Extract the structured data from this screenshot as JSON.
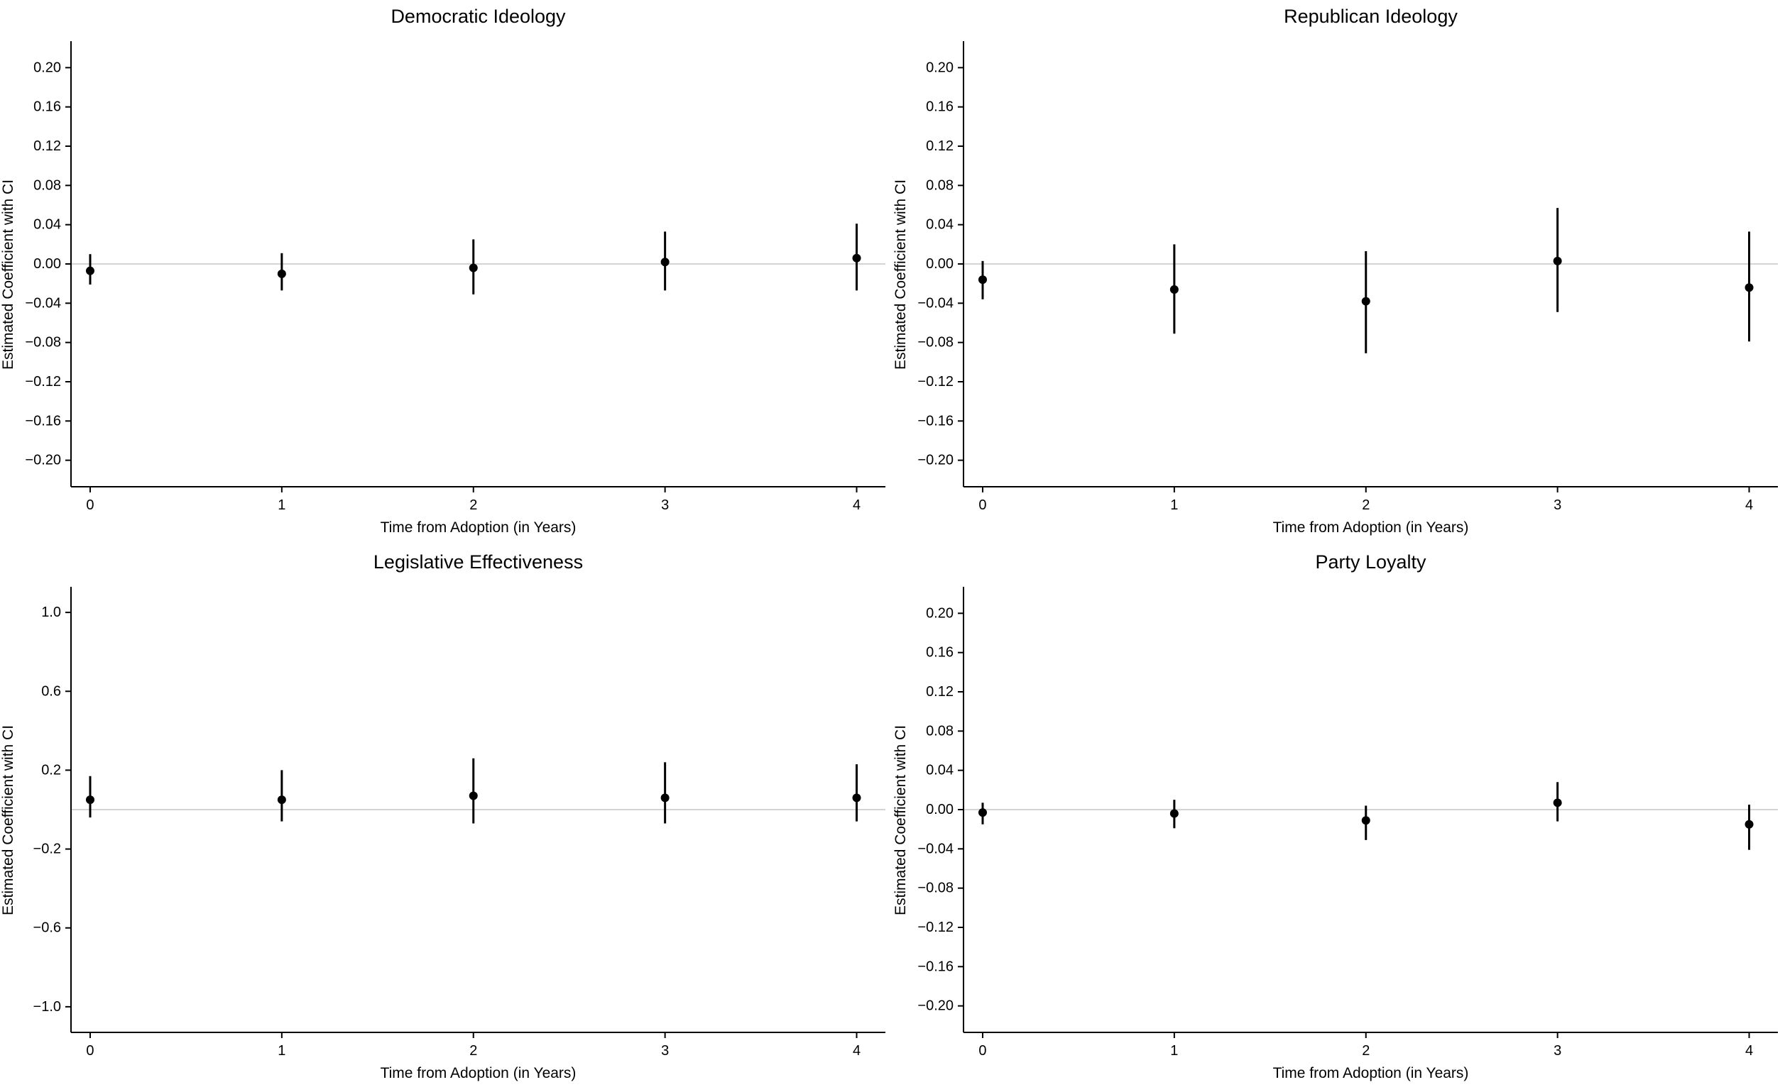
{
  "style": {
    "background": "#ffffff",
    "axis_color": "#000000",
    "point_color": "#000000",
    "ci_color": "#000000",
    "zero_line_color": "#d4d4d4"
  },
  "chart_data": [
    {
      "type": "scatter",
      "title": "Democratic Ideology",
      "xlabel": "Time from Adoption (in Years)",
      "ylabel": "Estimated Coefficient with CI",
      "x": [
        0,
        1,
        2,
        3,
        4
      ],
      "xticks": [
        0,
        1,
        2,
        3,
        4
      ],
      "xtick_labels": [
        "0",
        "1",
        "2",
        "3",
        "4"
      ],
      "yticks": [
        0.2,
        0.16,
        0.12,
        0.08,
        0.04,
        0.0,
        -0.04,
        -0.08,
        -0.12,
        -0.16,
        -0.2
      ],
      "ytick_labels": [
        "0.20",
        "0.16",
        "0.12",
        "0.08",
        "0.04",
        "0.00",
        "−0.04",
        "−0.08",
        "−0.12",
        "−0.16",
        "−0.20"
      ],
      "ylim": [
        -0.227,
        0.227
      ],
      "zero_line": 0,
      "grid": false,
      "legend": false,
      "series": [
        {
          "name": "estimate",
          "values": [
            -0.007,
            -0.01,
            -0.004,
            0.002,
            0.006
          ]
        }
      ],
      "ci_low": [
        -0.021,
        -0.027,
        -0.031,
        -0.027,
        -0.027
      ],
      "ci_high": [
        0.01,
        0.011,
        0.025,
        0.033,
        0.041
      ]
    },
    {
      "type": "scatter",
      "title": "Republican Ideology",
      "xlabel": "Time from Adoption (in Years)",
      "ylabel": "Estimated Coefficient with CI",
      "x": [
        0,
        1,
        2,
        3,
        4
      ],
      "xticks": [
        0,
        1,
        2,
        3,
        4
      ],
      "xtick_labels": [
        "0",
        "1",
        "2",
        "3",
        "4"
      ],
      "yticks": [
        0.2,
        0.16,
        0.12,
        0.08,
        0.04,
        0.0,
        -0.04,
        -0.08,
        -0.12,
        -0.16,
        -0.2
      ],
      "ytick_labels": [
        "0.20",
        "0.16",
        "0.12",
        "0.08",
        "0.04",
        "0.00",
        "−0.04",
        "−0.08",
        "−0.12",
        "−0.16",
        "−0.20"
      ],
      "ylim": [
        -0.227,
        0.227
      ],
      "zero_line": 0,
      "grid": false,
      "legend": false,
      "series": [
        {
          "name": "estimate",
          "values": [
            -0.016,
            -0.026,
            -0.038,
            0.003,
            -0.024
          ]
        }
      ],
      "ci_low": [
        -0.036,
        -0.071,
        -0.091,
        -0.049,
        -0.079
      ],
      "ci_high": [
        0.003,
        0.02,
        0.013,
        0.057,
        0.033
      ]
    },
    {
      "type": "scatter",
      "title": "Legislative Effectiveness",
      "xlabel": "Time from Adoption (in Years)",
      "ylabel": "Estimated Coefficient with CI",
      "x": [
        0,
        1,
        2,
        3,
        4
      ],
      "xticks": [
        0,
        1,
        2,
        3,
        4
      ],
      "xtick_labels": [
        "0",
        "1",
        "2",
        "3",
        "4"
      ],
      "yticks": [
        1.0,
        0.6,
        0.2,
        -0.2,
        -0.6,
        -1.0
      ],
      "ytick_labels": [
        "1.0",
        "0.6",
        "0.2",
        "−0.2",
        "−0.6",
        "−1.0"
      ],
      "ylim": [
        -1.13,
        1.13
      ],
      "zero_line": 0,
      "grid": false,
      "legend": false,
      "series": [
        {
          "name": "estimate",
          "values": [
            0.05,
            0.05,
            0.07,
            0.06,
            0.06
          ]
        }
      ],
      "ci_low": [
        -0.04,
        -0.06,
        -0.07,
        -0.07,
        -0.06
      ],
      "ci_high": [
        0.17,
        0.2,
        0.26,
        0.24,
        0.23
      ]
    },
    {
      "type": "scatter",
      "title": "Party Loyalty",
      "xlabel": "Time from Adoption (in Years)",
      "ylabel": "Estimated Coefficient with CI",
      "x": [
        0,
        1,
        2,
        3,
        4
      ],
      "xticks": [
        0,
        1,
        2,
        3,
        4
      ],
      "xtick_labels": [
        "0",
        "1",
        "2",
        "3",
        "4"
      ],
      "yticks": [
        0.2,
        0.16,
        0.12,
        0.08,
        0.04,
        0.0,
        -0.04,
        -0.08,
        -0.12,
        -0.16,
        -0.2
      ],
      "ytick_labels": [
        "0.20",
        "0.16",
        "0.12",
        "0.08",
        "0.04",
        "0.00",
        "−0.04",
        "−0.08",
        "−0.12",
        "−0.16",
        "−0.20"
      ],
      "ylim": [
        -0.227,
        0.227
      ],
      "zero_line": 0,
      "grid": false,
      "legend": false,
      "series": [
        {
          "name": "estimate",
          "values": [
            -0.003,
            -0.004,
            -0.011,
            0.007,
            -0.015
          ]
        }
      ],
      "ci_low": [
        -0.015,
        -0.019,
        -0.031,
        -0.012,
        -0.041
      ],
      "ci_high": [
        0.007,
        0.01,
        0.004,
        0.028,
        0.005
      ]
    }
  ]
}
